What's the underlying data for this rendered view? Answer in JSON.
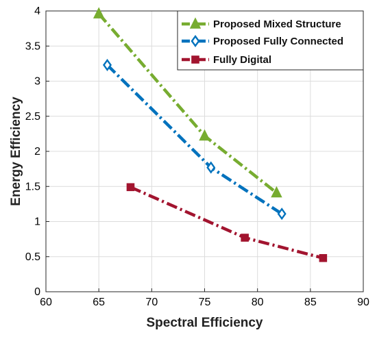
{
  "chart_data": {
    "type": "line",
    "xlabel": "Spectral Efficiency",
    "ylabel": "Energy Efficiency",
    "xlim": [
      60,
      90
    ],
    "ylim": [
      0,
      4
    ],
    "xticks": [
      60,
      65,
      70,
      75,
      80,
      85,
      90
    ],
    "yticks": [
      0,
      0.5,
      1,
      1.5,
      2,
      2.5,
      3,
      3.5,
      4
    ],
    "xtick_labels": [
      "60",
      "65",
      "70",
      "75",
      "80",
      "85",
      "90"
    ],
    "ytick_labels": [
      "0",
      "0.5",
      "1",
      "1.5",
      "2",
      "2.5",
      "3",
      "3.5",
      "4"
    ],
    "grid": true,
    "legend_position": "top-right",
    "series": [
      {
        "name": "Proposed Mixed Structure",
        "color": "#77ac30",
        "marker": "triangle",
        "line_style": "dash-dot",
        "x": [
          65.0,
          75.0,
          81.8
        ],
        "y": [
          3.96,
          2.22,
          1.41
        ]
      },
      {
        "name": "Proposed Fully Connected",
        "color": "#0072bd",
        "marker": "diamond",
        "line_style": "dash-dot",
        "x": [
          65.8,
          75.6,
          82.3
        ],
        "y": [
          3.23,
          1.77,
          1.11
        ]
      },
      {
        "name": "Fully Digital",
        "color": "#a2142f",
        "marker": "square",
        "line_style": "dash-dot",
        "x": [
          68.0,
          78.8,
          86.2
        ],
        "y": [
          1.49,
          0.77,
          0.48
        ]
      }
    ]
  }
}
